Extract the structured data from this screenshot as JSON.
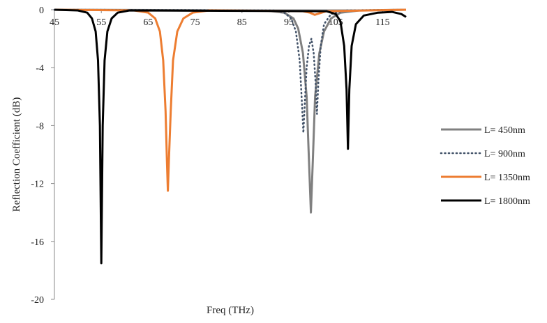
{
  "chart_data": {
    "type": "line",
    "title": "",
    "xlabel": "Freq (THz)",
    "ylabel": "Reflection Coefficient (dB)",
    "xlim": [
      45,
      120
    ],
    "ylim": [
      -20,
      0
    ],
    "x_ticks": [
      45,
      55,
      65,
      75,
      85,
      95,
      105,
      115
    ],
    "y_ticks": [
      0,
      -4,
      -8,
      -12,
      -16,
      -20
    ],
    "grid": false,
    "legend_position": "right",
    "series": [
      {
        "name": "L= 450nm",
        "color": "#808080",
        "dash": "solid",
        "points": [
          [
            45,
            0
          ],
          [
            90,
            -0.05
          ],
          [
            94,
            -0.2
          ],
          [
            96,
            -0.6
          ],
          [
            97,
            -1.3
          ],
          [
            98,
            -3.0
          ],
          [
            98.8,
            -6.0
          ],
          [
            99.3,
            -10.5
          ],
          [
            99.7,
            -14.0
          ],
          [
            100.1,
            -10.5
          ],
          [
            100.6,
            -6.0
          ],
          [
            101.5,
            -3.0
          ],
          [
            102.5,
            -1.5
          ],
          [
            104,
            -0.6
          ],
          [
            106,
            -0.2
          ],
          [
            110,
            -0.05
          ],
          [
            120,
            0
          ]
        ]
      },
      {
        "name": "L= 900nm",
        "color": "#44546A",
        "dash": "dotted",
        "points": [
          [
            45,
            0
          ],
          [
            92,
            -0.05
          ],
          [
            94,
            -0.2
          ],
          [
            95.5,
            -0.6
          ],
          [
            96.5,
            -1.5
          ],
          [
            97.3,
            -3.5
          ],
          [
            97.8,
            -6.5
          ],
          [
            98.1,
            -8.5
          ],
          [
            98.4,
            -6.5
          ],
          [
            98.8,
            -4.0
          ],
          [
            99.3,
            -2.5
          ],
          [
            99.8,
            -2.0
          ],
          [
            100.3,
            -3.0
          ],
          [
            100.7,
            -5.0
          ],
          [
            101.0,
            -7.2
          ],
          [
            101.3,
            -5.0
          ],
          [
            101.8,
            -2.5
          ],
          [
            102.5,
            -1.0
          ],
          [
            104,
            -0.3
          ],
          [
            107,
            -0.05
          ],
          [
            120,
            0
          ]
        ]
      },
      {
        "name": "L= 1350nm",
        "color": "#ED7D31",
        "dash": "solid",
        "points": [
          [
            45,
            0
          ],
          [
            62,
            -0.05
          ],
          [
            65,
            -0.2
          ],
          [
            66.5,
            -0.6
          ],
          [
            67.5,
            -1.5
          ],
          [
            68.2,
            -3.5
          ],
          [
            68.7,
            -7.0
          ],
          [
            69.0,
            -10.5
          ],
          [
            69.2,
            -12.5
          ],
          [
            69.4,
            -10.5
          ],
          [
            69.8,
            -7.0
          ],
          [
            70.3,
            -3.5
          ],
          [
            71.2,
            -1.5
          ],
          [
            72.5,
            -0.6
          ],
          [
            74.5,
            -0.2
          ],
          [
            78,
            -0.05
          ],
          [
            98,
            -0.1
          ],
          [
            99.5,
            -0.2
          ],
          [
            100.5,
            -0.35
          ],
          [
            101.5,
            -0.25
          ],
          [
            103,
            -0.1
          ],
          [
            120,
            0
          ]
        ]
      },
      {
        "name": "L= 1800nm",
        "color": "#000000",
        "dash": "solid",
        "points": [
          [
            45,
            0
          ],
          [
            50,
            -0.05
          ],
          [
            52,
            -0.2
          ],
          [
            53,
            -0.6
          ],
          [
            53.8,
            -1.5
          ],
          [
            54.3,
            -3.5
          ],
          [
            54.7,
            -8.0
          ],
          [
            55.0,
            -17.5
          ],
          [
            55.3,
            -8.0
          ],
          [
            55.7,
            -3.5
          ],
          [
            56.3,
            -1.5
          ],
          [
            57.2,
            -0.6
          ],
          [
            58.5,
            -0.2
          ],
          [
            61,
            -0.05
          ],
          [
            103,
            -0.1
          ],
          [
            105,
            -0.3
          ],
          [
            106,
            -0.8
          ],
          [
            106.8,
            -2.5
          ],
          [
            107.3,
            -5.5
          ],
          [
            107.6,
            -9.6
          ],
          [
            107.9,
            -5.5
          ],
          [
            108.4,
            -2.5
          ],
          [
            109.3,
            -1.0
          ],
          [
            111,
            -0.4
          ],
          [
            114,
            -0.2
          ],
          [
            117,
            -0.15
          ],
          [
            119,
            -0.3
          ],
          [
            120,
            -0.5
          ]
        ]
      }
    ]
  }
}
